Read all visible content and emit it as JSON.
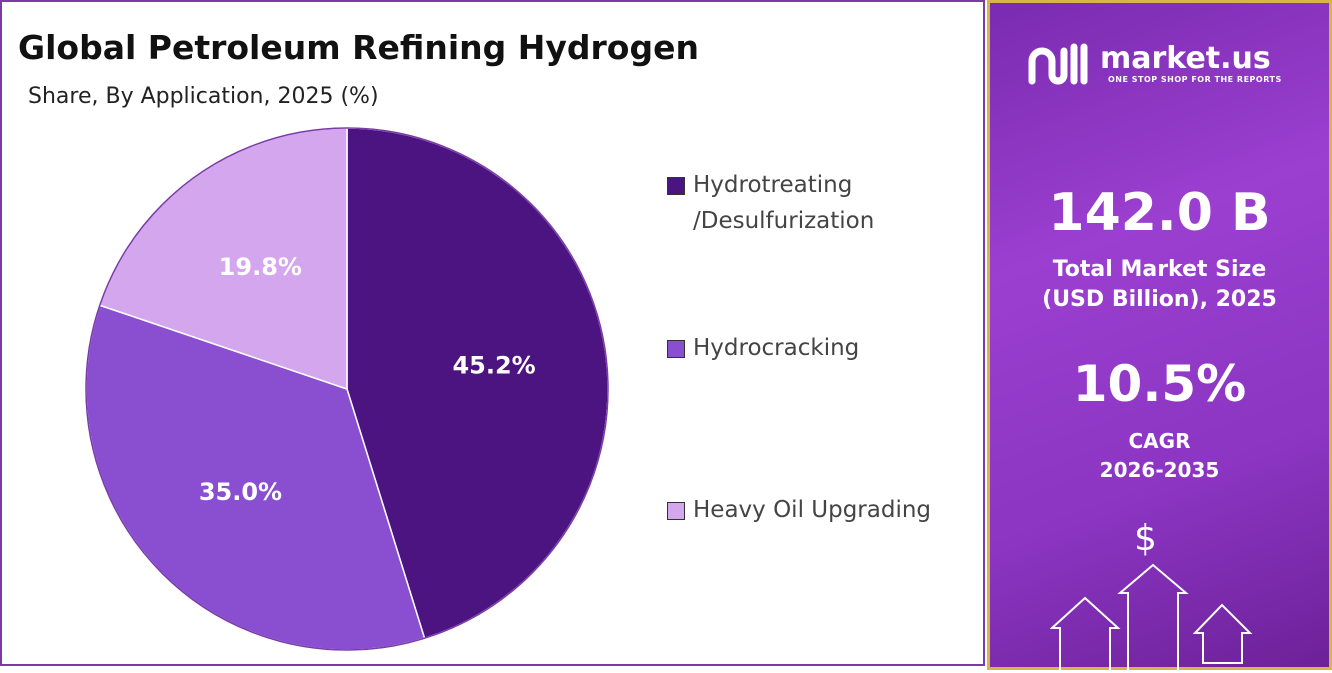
{
  "chart_data": {
    "type": "pie",
    "title": "Global Petroleum Refining Hydrogen",
    "subtitle": "Share, By Application, 2025 (%)",
    "categories": [
      "Hydrotreating\n/Desulfurization",
      "Hydrocracking",
      "Heavy Oil Upgrading"
    ],
    "values": [
      45.2,
      35.0,
      19.8
    ],
    "value_labels": [
      "45.2%",
      "35.0%",
      "19.8%"
    ],
    "colors": [
      "#4b1480",
      "#8a4fd1",
      "#d3a6ee"
    ]
  },
  "side_panel": {
    "brand": "market.us",
    "tagline": "ONE STOP SHOP FOR THE REPORTS",
    "market_size": "142.0 B",
    "market_size_label": "Total Market Size\n(USD Billion), 2025",
    "cagr": "10.5%",
    "cagr_label": "CAGR\n2026-2035",
    "icon": "$"
  }
}
